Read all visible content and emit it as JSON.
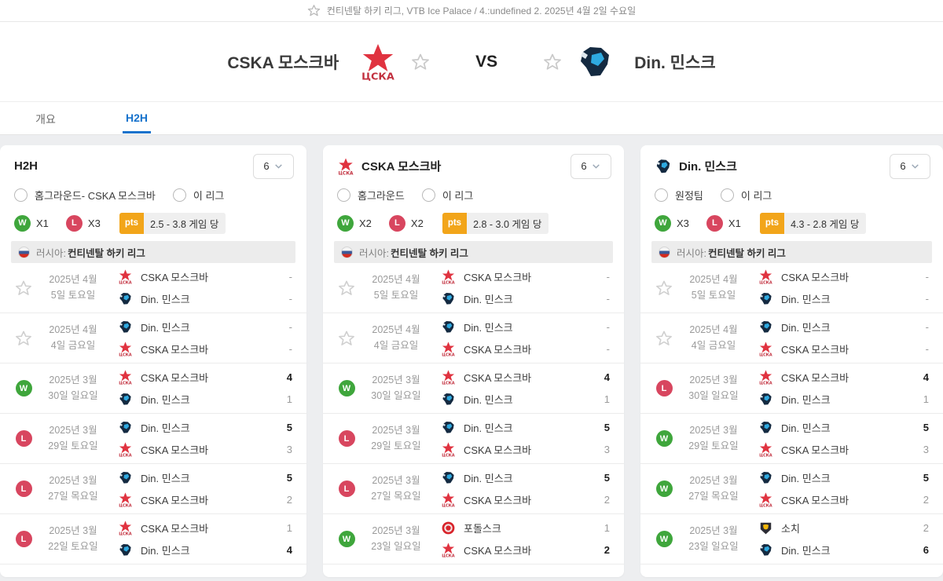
{
  "topbar": {
    "text": "컨티넨탈 하키 리그, VTB Ice Palace / 4.:undefined 2. 2025년 4월 2일 수요일"
  },
  "header": {
    "home_name": "CSKA 모스크바",
    "away_name": "Din. 민스크",
    "vs": "VS"
  },
  "tabs": [
    {
      "label": "개요",
      "active": false
    },
    {
      "label": "H2H",
      "active": true
    }
  ],
  "badges": {
    "win": "W",
    "loss": "L",
    "pts": "pts"
  },
  "colors": {
    "accent_blue": "#1672cc",
    "win_green": "#3fa63c",
    "loss_red": "#d8465f",
    "pts_orange": "#f2a51a"
  },
  "columns": [
    {
      "title": "H2H",
      "logo": null,
      "count": "6",
      "filters": [
        "홈그라운드- CSKA 모스크바",
        "이 리그"
      ],
      "wins": "X1",
      "losses": "X3",
      "pts_text": "2.5 - 3.8 게임 당",
      "league": {
        "country": "러시아:",
        "name": "컨티넨탈 하키 리그"
      },
      "matches": [
        {
          "result": "upcoming",
          "date1": "2025년 4월",
          "date2": "5일 토요일",
          "teams": [
            {
              "logo": "cska",
              "name": "CSKA 모스크바",
              "score": "-",
              "win": false
            },
            {
              "logo": "dinamo",
              "name": "Din. 민스크",
              "score": "-",
              "win": false
            }
          ]
        },
        {
          "result": "upcoming",
          "date1": "2025년 4월",
          "date2": "4일 금요일",
          "teams": [
            {
              "logo": "dinamo",
              "name": "Din. 민스크",
              "score": "-",
              "win": false
            },
            {
              "logo": "cska",
              "name": "CSKA 모스크바",
              "score": "-",
              "win": false
            }
          ]
        },
        {
          "result": "win",
          "date1": "2025년 3월",
          "date2": "30일 일요일",
          "teams": [
            {
              "logo": "cska",
              "name": "CSKA 모스크바",
              "score": "4",
              "win": true
            },
            {
              "logo": "dinamo",
              "name": "Din. 민스크",
              "score": "1",
              "win": false
            }
          ]
        },
        {
          "result": "loss",
          "date1": "2025년 3월",
          "date2": "29일 토요일",
          "teams": [
            {
              "logo": "dinamo",
              "name": "Din. 민스크",
              "score": "5",
              "win": true
            },
            {
              "logo": "cska",
              "name": "CSKA 모스크바",
              "score": "3",
              "win": false
            }
          ]
        },
        {
          "result": "loss",
          "date1": "2025년 3월",
          "date2": "27일 목요일",
          "teams": [
            {
              "logo": "dinamo",
              "name": "Din. 민스크",
              "score": "5",
              "win": true
            },
            {
              "logo": "cska",
              "name": "CSKA 모스크바",
              "score": "2",
              "win": false
            }
          ]
        },
        {
          "result": "loss",
          "date1": "2025년 3월",
          "date2": "22일 토요일",
          "teams": [
            {
              "logo": "cska",
              "name": "CSKA 모스크바",
              "score": "1",
              "win": false
            },
            {
              "logo": "dinamo",
              "name": "Din. 민스크",
              "score": "4",
              "win": true
            }
          ]
        }
      ]
    },
    {
      "title": "CSKA 모스크바",
      "logo": "cska",
      "count": "6",
      "filters": [
        "홈그라운드",
        "이 리그"
      ],
      "wins": "X2",
      "losses": "X2",
      "pts_text": "2.8 - 3.0 게임 당",
      "league": {
        "country": "러시아:",
        "name": "컨티넨탈 하키 리그"
      },
      "matches": [
        {
          "result": "upcoming",
          "date1": "2025년 4월",
          "date2": "5일 토요일",
          "teams": [
            {
              "logo": "cska",
              "name": "CSKA 모스크바",
              "score": "-",
              "win": false
            },
            {
              "logo": "dinamo",
              "name": "Din. 민스크",
              "score": "-",
              "win": false
            }
          ]
        },
        {
          "result": "upcoming",
          "date1": "2025년 4월",
          "date2": "4일 금요일",
          "teams": [
            {
              "logo": "dinamo",
              "name": "Din. 민스크",
              "score": "-",
              "win": false
            },
            {
              "logo": "cska",
              "name": "CSKA 모스크바",
              "score": "-",
              "win": false
            }
          ]
        },
        {
          "result": "win",
          "date1": "2025년 3월",
          "date2": "30일 일요일",
          "teams": [
            {
              "logo": "cska",
              "name": "CSKA 모스크바",
              "score": "4",
              "win": true
            },
            {
              "logo": "dinamo",
              "name": "Din. 민스크",
              "score": "1",
              "win": false
            }
          ]
        },
        {
          "result": "loss",
          "date1": "2025년 3월",
          "date2": "29일 토요일",
          "teams": [
            {
              "logo": "dinamo",
              "name": "Din. 민스크",
              "score": "5",
              "win": true
            },
            {
              "logo": "cska",
              "name": "CSKA 모스크바",
              "score": "3",
              "win": false
            }
          ]
        },
        {
          "result": "loss",
          "date1": "2025년 3월",
          "date2": "27일 목요일",
          "teams": [
            {
              "logo": "dinamo",
              "name": "Din. 민스크",
              "score": "5",
              "win": true
            },
            {
              "logo": "cska",
              "name": "CSKA 모스크바",
              "score": "2",
              "win": false
            }
          ]
        },
        {
          "result": "win",
          "date1": "2025년 3월",
          "date2": "23일 일요일",
          "teams": [
            {
              "logo": "podolsk",
              "name": "포돌스크",
              "score": "1",
              "win": false
            },
            {
              "logo": "cska",
              "name": "CSKA 모스크바",
              "score": "2",
              "win": true
            }
          ]
        }
      ]
    },
    {
      "title": "Din. 민스크",
      "logo": "dinamo",
      "count": "6",
      "filters": [
        "원정팀",
        "이 리그"
      ],
      "wins": "X3",
      "losses": "X1",
      "pts_text": "4.3 - 2.8 게임 당",
      "league": {
        "country": "러시아:",
        "name": "컨티넨탈 하키 리그"
      },
      "matches": [
        {
          "result": "upcoming",
          "date1": "2025년 4월",
          "date2": "5일 토요일",
          "teams": [
            {
              "logo": "cska",
              "name": "CSKA 모스크바",
              "score": "-",
              "win": false
            },
            {
              "logo": "dinamo",
              "name": "Din. 민스크",
              "score": "-",
              "win": false
            }
          ]
        },
        {
          "result": "upcoming",
          "date1": "2025년 4월",
          "date2": "4일 금요일",
          "teams": [
            {
              "logo": "dinamo",
              "name": "Din. 민스크",
              "score": "-",
              "win": false
            },
            {
              "logo": "cska",
              "name": "CSKA 모스크바",
              "score": "-",
              "win": false
            }
          ]
        },
        {
          "result": "loss",
          "date1": "2025년 3월",
          "date2": "30일 일요일",
          "teams": [
            {
              "logo": "cska",
              "name": "CSKA 모스크바",
              "score": "4",
              "win": true
            },
            {
              "logo": "dinamo",
              "name": "Din. 민스크",
              "score": "1",
              "win": false
            }
          ]
        },
        {
          "result": "win",
          "date1": "2025년 3월",
          "date2": "29일 토요일",
          "teams": [
            {
              "logo": "dinamo",
              "name": "Din. 민스크",
              "score": "5",
              "win": true
            },
            {
              "logo": "cska",
              "name": "CSKA 모스크바",
              "score": "3",
              "win": false
            }
          ]
        },
        {
          "result": "win",
          "date1": "2025년 3월",
          "date2": "27일 목요일",
          "teams": [
            {
              "logo": "dinamo",
              "name": "Din. 민스크",
              "score": "5",
              "win": true
            },
            {
              "logo": "cska",
              "name": "CSKA 모스크바",
              "score": "2",
              "win": false
            }
          ]
        },
        {
          "result": "win",
          "date1": "2025년 3월",
          "date2": "23일 일요일",
          "teams": [
            {
              "logo": "sochi",
              "name": "소치",
              "score": "2",
              "win": false
            },
            {
              "logo": "dinamo",
              "name": "Din. 민스크",
              "score": "6",
              "win": true
            }
          ]
        }
      ]
    }
  ]
}
